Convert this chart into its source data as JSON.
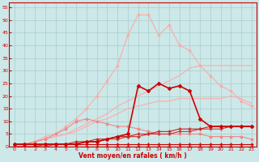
{
  "background_color": "#cce8e8",
  "grid_color": "#aacccc",
  "xlabel": "Vent moyen/en rafales ( km/h )",
  "xlabel_color": "#cc0000",
  "tick_color": "#cc0000",
  "xlim": [
    -0.5,
    23.5
  ],
  "ylim": [
    0,
    57
  ],
  "yticks": [
    0,
    5,
    10,
    15,
    20,
    25,
    30,
    35,
    40,
    45,
    50,
    55
  ],
  "xticks": [
    0,
    1,
    2,
    3,
    4,
    5,
    6,
    7,
    8,
    9,
    10,
    11,
    12,
    13,
    14,
    15,
    16,
    17,
    18,
    19,
    20,
    21,
    22,
    23
  ],
  "lines": [
    {
      "x": [
        0,
        1,
        2,
        3,
        4,
        5,
        6,
        7,
        8,
        9,
        10,
        11,
        12,
        13,
        14,
        15,
        16,
        17,
        18,
        19,
        20,
        21,
        22,
        23
      ],
      "y": [
        0,
        0,
        0,
        0,
        0,
        0,
        0,
        0,
        0,
        0,
        0,
        0,
        0,
        0,
        0,
        0,
        0,
        0,
        0,
        0,
        0,
        0,
        0,
        0
      ],
      "color": "#cc0000",
      "lw": 0.8,
      "marker": "+",
      "ms": 3,
      "zorder": 5
    },
    {
      "x": [
        0,
        1,
        2,
        3,
        4,
        5,
        6,
        7,
        8,
        9,
        10,
        11,
        12,
        13,
        14,
        15,
        16,
        17,
        18,
        19,
        20,
        21,
        22,
        23
      ],
      "y": [
        1,
        1,
        1,
        1,
        1,
        1,
        1,
        1,
        1,
        1,
        1,
        1,
        1,
        1,
        1,
        1,
        1,
        1,
        1,
        1,
        1,
        1,
        1,
        1
      ],
      "color": "#cc0000",
      "lw": 0.8,
      "marker": "+",
      "ms": 3,
      "zorder": 5
    },
    {
      "x": [
        0,
        1,
        2,
        3,
        4,
        5,
        6,
        7,
        8,
        9,
        10,
        11,
        12,
        13,
        14,
        15,
        16,
        17,
        18,
        19,
        20,
        21,
        22,
        23
      ],
      "y": [
        0,
        0,
        0,
        0,
        1,
        1,
        1,
        2,
        2,
        3,
        3,
        4,
        4,
        5,
        5,
        5,
        6,
        6,
        7,
        7,
        7,
        8,
        8,
        8
      ],
      "color": "#cc3333",
      "lw": 0.8,
      "marker": "+",
      "ms": 3,
      "zorder": 5
    },
    {
      "x": [
        0,
        1,
        2,
        3,
        4,
        5,
        6,
        7,
        8,
        9,
        10,
        11,
        12,
        13,
        14,
        15,
        16,
        17,
        18,
        19,
        20,
        21,
        22,
        23
      ],
      "y": [
        0,
        0,
        0,
        1,
        1,
        1,
        2,
        2,
        3,
        3,
        4,
        4,
        5,
        5,
        6,
        6,
        7,
        7,
        7,
        8,
        8,
        8,
        8,
        8
      ],
      "color": "#cc2222",
      "lw": 0.8,
      "marker": "+",
      "ms": 3,
      "zorder": 5
    },
    {
      "x": [
        0,
        1,
        2,
        3,
        4,
        5,
        6,
        7,
        8,
        9,
        10,
        11,
        12,
        13,
        14,
        15,
        16,
        17,
        18,
        19,
        20,
        21,
        22,
        23
      ],
      "y": [
        1,
        1,
        1,
        1,
        1,
        1,
        1,
        2,
        2,
        3,
        4,
        5,
        24,
        22,
        25,
        23,
        24,
        22,
        11,
        8,
        8,
        8,
        8,
        8
      ],
      "color": "#cc0000",
      "lw": 1.2,
      "marker": "D",
      "ms": 2,
      "zorder": 6
    },
    {
      "x": [
        0,
        1,
        2,
        3,
        4,
        5,
        6,
        7,
        8,
        9,
        10,
        11,
        12,
        13,
        14,
        15,
        16,
        17,
        18,
        19,
        20,
        21,
        22,
        23
      ],
      "y": [
        1,
        1,
        2,
        3,
        4,
        5,
        7,
        9,
        11,
        13,
        16,
        18,
        20,
        22,
        24,
        26,
        28,
        31,
        32,
        32,
        32,
        32,
        32,
        32
      ],
      "color": "#ffaaaa",
      "lw": 0.8,
      "marker": null,
      "ms": 0,
      "zorder": 3
    },
    {
      "x": [
        0,
        1,
        2,
        3,
        4,
        5,
        6,
        7,
        8,
        9,
        10,
        11,
        12,
        13,
        14,
        15,
        16,
        17,
        18,
        19,
        20,
        21,
        22,
        23
      ],
      "y": [
        1,
        1,
        2,
        3,
        4,
        5,
        6,
        8,
        10,
        11,
        13,
        15,
        16,
        17,
        18,
        18,
        19,
        19,
        19,
        19,
        19,
        20,
        19,
        17
      ],
      "color": "#ffaaaa",
      "lw": 0.8,
      "marker": null,
      "ms": 0,
      "zorder": 3
    },
    {
      "x": [
        0,
        1,
        2,
        3,
        4,
        5,
        6,
        7,
        8,
        9,
        10,
        11,
        12,
        13,
        14,
        15,
        16,
        17,
        18,
        19,
        20,
        21,
        22,
        23
      ],
      "y": [
        1,
        1,
        2,
        4,
        5,
        8,
        11,
        15,
        20,
        26,
        32,
        44,
        52,
        52,
        44,
        48,
        40,
        38,
        32,
        28,
        24,
        22,
        18,
        16
      ],
      "color": "#ffaaaa",
      "lw": 0.8,
      "marker": "D",
      "ms": 1.5,
      "zorder": 3
    },
    {
      "x": [
        0,
        1,
        2,
        3,
        4,
        5,
        6,
        7,
        8,
        9,
        10,
        11,
        12,
        13,
        14,
        15,
        16,
        17,
        18,
        19,
        20,
        21,
        22,
        23
      ],
      "y": [
        1,
        1,
        2,
        3,
        5,
        7,
        10,
        11,
        10,
        9,
        8,
        8,
        7,
        6,
        5,
        5,
        5,
        5,
        5,
        4,
        4,
        4,
        4,
        3
      ],
      "color": "#ee8888",
      "lw": 0.8,
      "marker": "D",
      "ms": 1.5,
      "zorder": 4
    }
  ]
}
